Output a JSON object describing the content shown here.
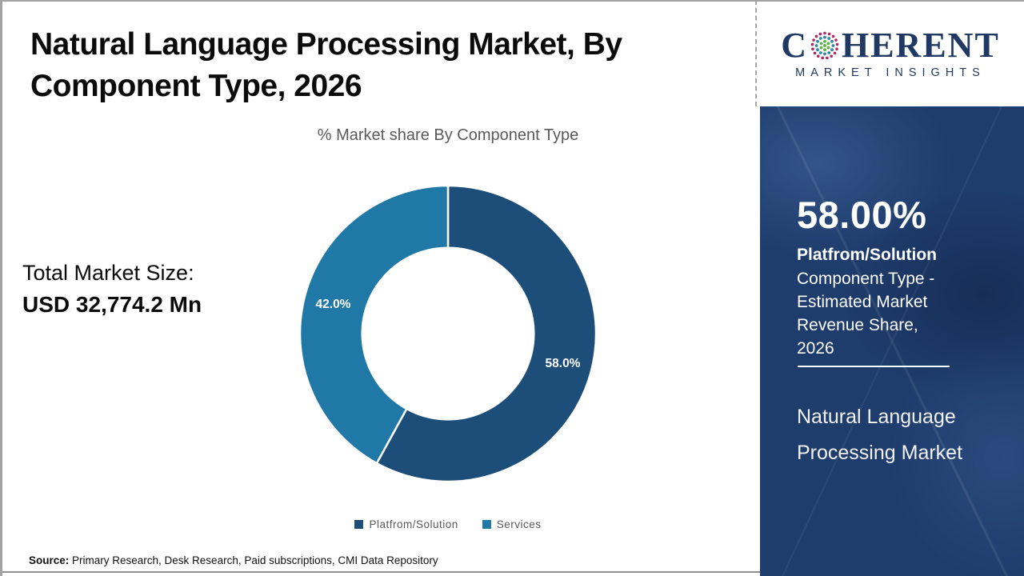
{
  "page": {
    "title": "Natural Language Processing Market, By Component Type, 2026",
    "total_market_label": "Total Market Size:",
    "total_market_value": "USD 32,774.2 Mn",
    "source_label": "Source:",
    "source_text": " Primary Research, Desk Research, Paid subscriptions, CMI Data Repository"
  },
  "logo": {
    "part1": "C",
    "part2": "HERENT",
    "tagline": "MARKET INSIGHTS",
    "brand_color": "#1f3864"
  },
  "sidebar": {
    "stat_value": "58.00%",
    "stat_name": "Platfrom/Solution",
    "stat_desc": "Component Type - Estimated Market Revenue Share, 2026",
    "market_name": "Natural Language Processing Market",
    "background": "#1e3c6c"
  },
  "chart_data": {
    "type": "pie",
    "donut": true,
    "title": "% Market share By Component Type",
    "categories": [
      "Platfrom/Solution",
      "Services"
    ],
    "series": [
      {
        "name": "Platfrom/Solution",
        "value": 58.0,
        "color": "#1d4e79",
        "label": "58.0%"
      },
      {
        "name": "Services",
        "value": 42.0,
        "color": "#2078a6",
        "label": "42.0%"
      }
    ],
    "start_angle_deg": 0,
    "direction": "clockwise",
    "inner_radius_ratio": 0.58,
    "legend_position": "bottom",
    "label_color": "#ffffff"
  }
}
